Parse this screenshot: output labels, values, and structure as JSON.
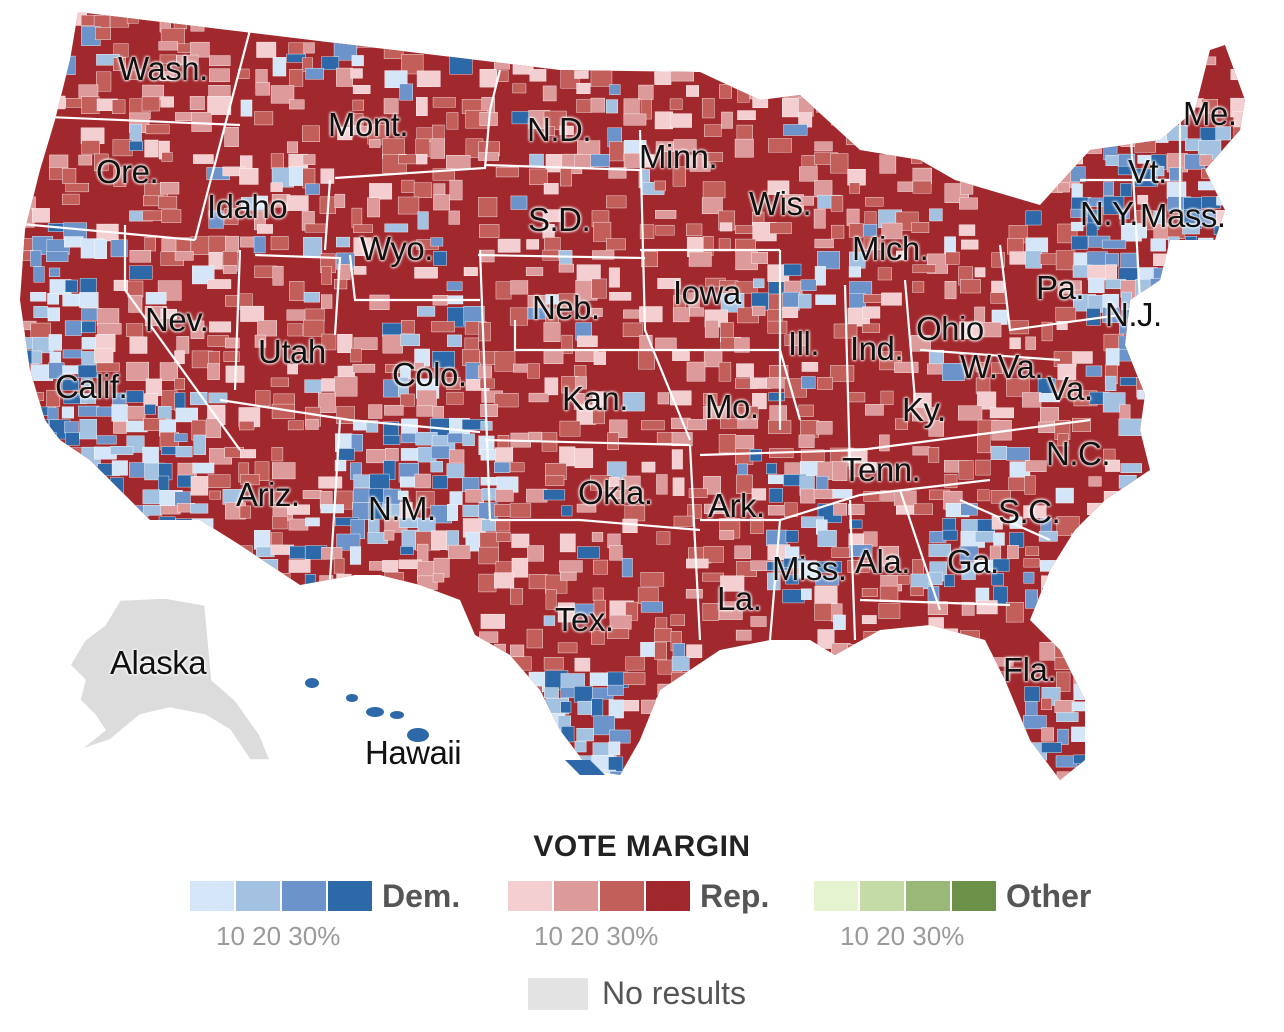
{
  "colors": {
    "dem": [
      "#d4e6f7",
      "#a3c2e2",
      "#6d93cb",
      "#2d68a8"
    ],
    "rep": [
      "#f4cfd1",
      "#dd9a9a",
      "#c25f5b",
      "#a1282c"
    ],
    "other": [
      "#e6f3d1",
      "#c5dba6",
      "#9ab878",
      "#6b9047"
    ],
    "no_results": "#e3e3e3",
    "border": "#ffffff"
  },
  "legend": {
    "title": "VOTE MARGIN",
    "groups": [
      {
        "name": "Dem.",
        "ticks": "10 20 30%"
      },
      {
        "name": "Rep.",
        "ticks": "10 20 30%"
      },
      {
        "name": "Other",
        "ticks": "10 20 30%"
      }
    ],
    "no_results_label": "No results"
  },
  "state_labels": [
    "Wash.",
    "Mont.",
    "N.D.",
    "Minn.",
    "Me.",
    "Ore.",
    "Idaho",
    "Vt.",
    "Wis.",
    "S.D.",
    "N.Y.",
    "Mass.",
    "Wyo.",
    "Mich.",
    "Iowa",
    "Pa.",
    "Nev.",
    "Neb.",
    "N.J.",
    "Ohio",
    "Utah",
    "Ill.",
    "Ind.",
    "W.Va.",
    "Calif.",
    "Colo.",
    "Va.",
    "Kan.",
    "Mo.",
    "Ky.",
    "N.C.",
    "Tenn.",
    "Okla.",
    "Ariz.",
    "Ark.",
    "N.M.",
    "S.C.",
    "Miss.",
    "Ala.",
    "Ga.",
    "La.",
    "Tex.",
    "Fla.",
    "Alaska",
    "Hawaii"
  ]
}
